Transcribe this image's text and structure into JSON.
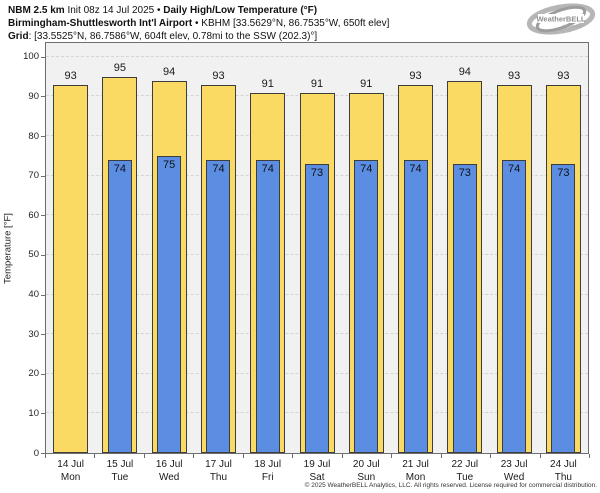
{
  "header": {
    "line1_bold1": "NBM 2.5 km",
    "line1_regular": " Init 08z 14 Jul 2025 • ",
    "line1_bold2": "Daily High/Low Temperature (°F)",
    "line2_bold": "Birmingham-Shuttlesworth Int'l Airport",
    "line2_regular": " • KBHM [33.5629°N, 86.7535°W, 650ft elev]",
    "line3_bold": "Grid",
    "line3_regular": ": [33.5525°N, 86.7586°W, 604ft elev, 0.78mi to the SSW (202.3)°]"
  },
  "logo": {
    "text": "WeatherBELL",
    "subtext": "Analytics LLC"
  },
  "chart_data": {
    "type": "bar",
    "title": "NBM 2.5 km Daily High/Low Temperature (°F) — Birmingham-Shuttlesworth Int'l Airport (KBHM)",
    "categories_date": [
      "14 Jul",
      "15 Jul",
      "16 Jul",
      "17 Jul",
      "18 Jul",
      "19 Jul",
      "20 Jul",
      "21 Jul",
      "22 Jul",
      "23 Jul",
      "24 Jul"
    ],
    "categories_dow": [
      "Mon",
      "Tue",
      "Wed",
      "Thu",
      "Fri",
      "Sat",
      "Sun",
      "Mon",
      "Tue",
      "Wed",
      "Thu"
    ],
    "series": [
      {
        "name": "Daily High",
        "color": "#fbda63",
        "values": [
          93,
          95,
          94,
          93,
          91,
          91,
          91,
          93,
          94,
          93,
          93
        ]
      },
      {
        "name": "Daily Low",
        "color": "#5b8de3",
        "values": [
          null,
          74,
          75,
          74,
          74,
          73,
          74,
          74,
          73,
          74,
          73
        ]
      }
    ],
    "ylabel": "Temperature [°F]",
    "ylim": [
      0,
      100
    ],
    "yticks": [
      0,
      10,
      20,
      30,
      40,
      50,
      60,
      70,
      80,
      90,
      100
    ],
    "grid": "horizontal-dashed",
    "legend_position": "none",
    "bar_labels": true
  },
  "footer": {
    "copyright": "© 2025 WeatherBELL Analytics, LLC. All rights reserved. License required for commercial distribution."
  }
}
